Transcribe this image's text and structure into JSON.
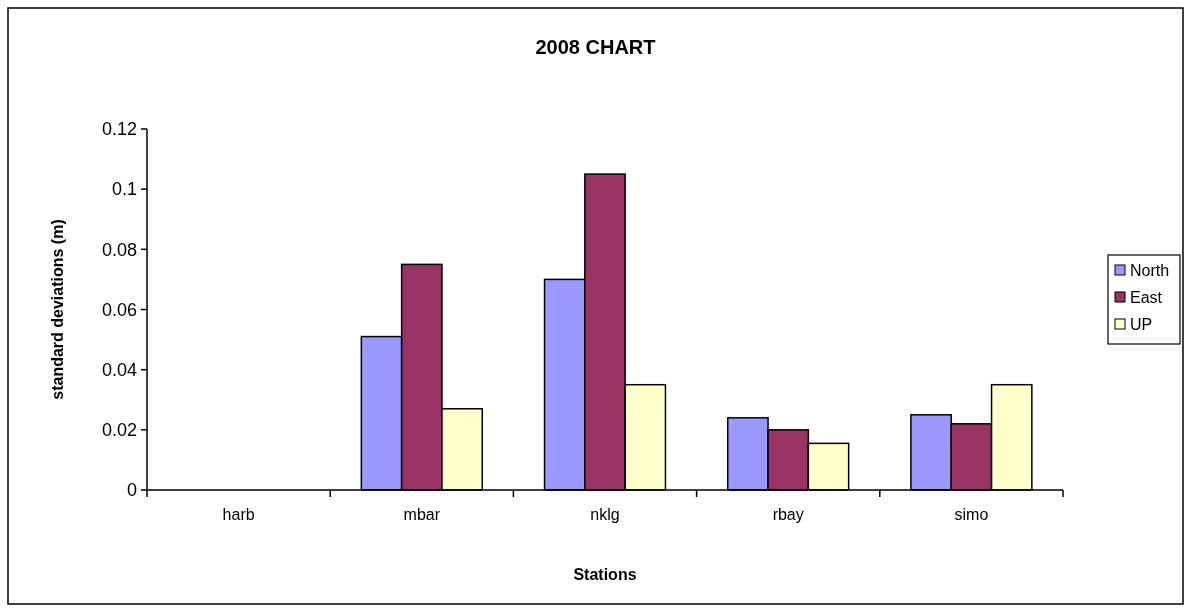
{
  "chart_data": {
    "type": "bar",
    "title": "2008 CHART",
    "xlabel": "Stations",
    "ylabel": "standard deviations (m)",
    "categories": [
      "harb",
      "mbar",
      "nklg",
      "rbay",
      "simo"
    ],
    "series": [
      {
        "name": "North",
        "color": "#9999ff",
        "values": [
          null,
          0.051,
          0.07,
          0.024,
          0.025
        ]
      },
      {
        "name": "East",
        "color": "#993366",
        "values": [
          null,
          0.075,
          0.105,
          0.02,
          0.022
        ]
      },
      {
        "name": "UP",
        "color": "#ffffcc",
        "values": [
          null,
          0.027,
          0.035,
          0.0155,
          0.035
        ]
      }
    ],
    "ylim": [
      0,
      0.12
    ],
    "yticks": [
      0,
      0.02,
      0.04,
      0.06,
      0.08,
      0.1,
      0.12
    ],
    "grid": false,
    "legend": "right"
  }
}
